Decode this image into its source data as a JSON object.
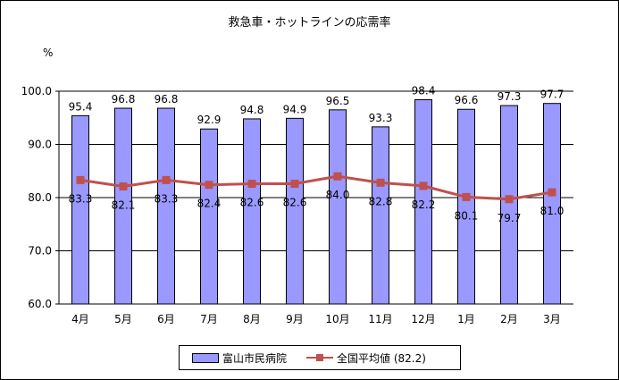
{
  "chart_data": {
    "type": "bar",
    "title": "救急車・ホットラインの応需率",
    "ylabel": "%",
    "ylim": [
      60,
      100
    ],
    "yticks": [
      "60.0",
      "70.0",
      "80.0",
      "90.0",
      "100.0"
    ],
    "categories": [
      "4月",
      "5月",
      "6月",
      "7月",
      "8月",
      "9月",
      "10月",
      "11月",
      "12月",
      "1月",
      "2月",
      "3月"
    ],
    "series": [
      {
        "name": "富山市民病院",
        "type": "bar",
        "color": "#9999ff",
        "values": [
          95.4,
          96.8,
          96.8,
          92.9,
          94.8,
          94.9,
          96.5,
          93.3,
          98.4,
          96.6,
          97.3,
          97.7
        ],
        "labels": [
          "95.4",
          "96.8",
          "96.8",
          "92.9",
          "94.8",
          "94.9",
          "96.5",
          "93.3",
          "98.4",
          "96.6",
          "97.3",
          "97.7"
        ]
      },
      {
        "name": "全国平均値 (82.2)",
        "type": "line",
        "color": "#c0504d",
        "values": [
          83.3,
          82.1,
          83.3,
          82.4,
          82.6,
          82.6,
          84.0,
          82.8,
          82.2,
          80.1,
          79.7,
          81.0
        ],
        "labels": [
          "83.3",
          "82.1",
          "83.3",
          "82.4",
          "82.6",
          "82.6",
          "84.0",
          "82.8",
          "82.2",
          "80.1",
          "79.7",
          "81.0"
        ]
      }
    ],
    "grid": true,
    "legend": "bottom"
  }
}
